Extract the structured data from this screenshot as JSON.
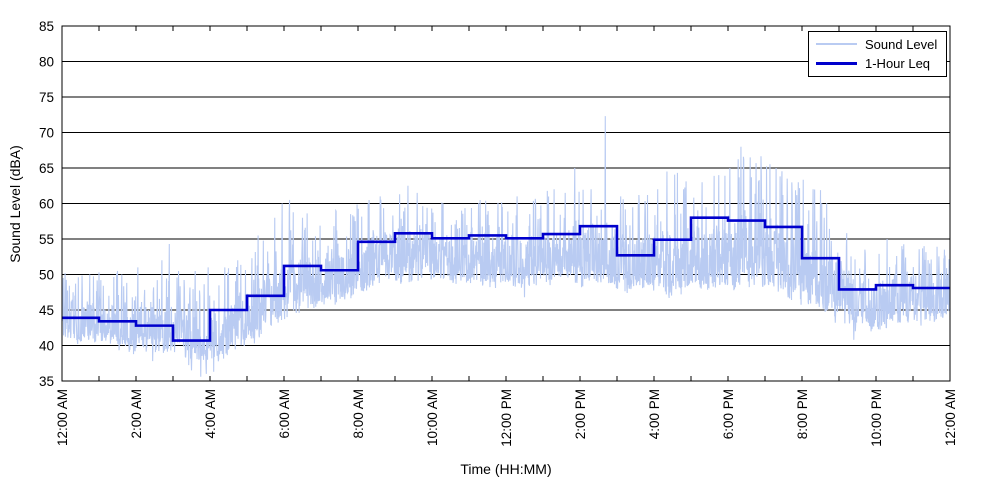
{
  "chart_data": {
    "type": "line",
    "title": "",
    "xlabel": "Time (HH:MM)",
    "ylabel": "Sound Level (dBA)",
    "ylim": [
      35,
      85
    ],
    "yticks": [
      35,
      40,
      45,
      50,
      55,
      60,
      65,
      70,
      75,
      80,
      85
    ],
    "x_hours": 24,
    "xtick_labels": [
      "12:00 AM",
      "2:00 AM",
      "4:00 AM",
      "6:00 AM",
      "8:00 AM",
      "10:00 AM",
      "12:00 PM",
      "2:00 PM",
      "4:00 PM",
      "6:00 PM",
      "8:00 PM",
      "10:00 PM",
      "12:00 AM"
    ],
    "xtick_label_every_hours": 2,
    "minor_tick_every_hours": 1,
    "grid": "horizontal-solid-black",
    "background": "#ffffff",
    "axis_color": "#000000",
    "legend": {
      "position": "top-right",
      "entries": [
        {
          "label": "Sound Level",
          "color": "#b9cbf2",
          "line_width": 1.5
        },
        {
          "label": "1-Hour Leq",
          "color": "#0000cc",
          "line_width": 3
        }
      ]
    },
    "series": [
      {
        "name": "Sound Level",
        "style": "noisy-line",
        "color": "#b9cbf2",
        "stroke_width": 1.1,
        "samples_per_hour": 120,
        "hourly_envelope_low": [
          39.5,
          38.5,
          37.5,
          35.5,
          36.5,
          40,
          43,
          43.5,
          47,
          47.5,
          47,
          46.5,
          46.5,
          47,
          46.5,
          45.5,
          45,
          46,
          46,
          45,
          43,
          40.5,
          41,
          42
        ],
        "hourly_envelope_high": [
          50,
          50.5,
          51,
          50.5,
          51,
          55,
          60.5,
          59,
          61,
          62.5,
          60,
          60.5,
          61,
          63,
          63,
          61,
          64.5,
          64,
          68,
          65,
          62,
          54,
          55,
          54
        ],
        "spikes": [
          [
            0.03,
            49.5
          ],
          [
            0.08,
            50.2
          ],
          [
            0.3,
            47.5
          ],
          [
            0.75,
            50
          ],
          [
            1.0,
            50.3
          ],
          [
            1.5,
            50.5
          ],
          [
            1.62,
            50
          ],
          [
            2.05,
            51
          ],
          [
            2.7,
            52
          ],
          [
            2.9,
            54.3
          ],
          [
            3.15,
            50.5
          ],
          [
            3.6,
            50.5
          ],
          [
            3.95,
            51
          ],
          [
            4.4,
            51
          ],
          [
            4.75,
            52
          ],
          [
            5.3,
            55.5
          ],
          [
            5.75,
            58
          ],
          [
            5.95,
            60
          ],
          [
            6.15,
            60.5
          ],
          [
            6.5,
            58
          ],
          [
            7.4,
            59
          ],
          [
            7.8,
            58.5
          ],
          [
            8.3,
            60.5
          ],
          [
            8.6,
            61
          ],
          [
            9.35,
            62.5
          ],
          [
            9.6,
            61.5
          ],
          [
            10.3,
            60
          ],
          [
            10.8,
            59
          ],
          [
            11.3,
            60.5
          ],
          [
            11.9,
            59.5
          ],
          [
            12.3,
            61
          ],
          [
            12.8,
            60
          ],
          [
            13.3,
            62
          ],
          [
            13.6,
            61.5
          ],
          [
            13.86,
            65
          ],
          [
            14.3,
            62
          ],
          [
            14.68,
            72.3
          ],
          [
            15.1,
            61
          ],
          [
            15.6,
            60
          ],
          [
            16.1,
            62
          ],
          [
            16.35,
            64.5
          ],
          [
            16.8,
            62
          ],
          [
            17.3,
            63
          ],
          [
            17.75,
            64
          ],
          [
            18.05,
            65
          ],
          [
            18.35,
            68
          ],
          [
            18.6,
            66.5
          ],
          [
            18.9,
            64
          ],
          [
            19.3,
            65
          ],
          [
            19.6,
            63.5
          ],
          [
            19.9,
            63
          ],
          [
            20.3,
            62
          ],
          [
            20.6,
            58
          ],
          [
            21.2,
            54
          ],
          [
            21.7,
            53.5
          ],
          [
            22.3,
            55
          ],
          [
            22.7,
            54
          ],
          [
            23.3,
            54
          ],
          [
            23.85,
            53.5
          ]
        ],
        "dips": [
          [
            2.45,
            37.8
          ],
          [
            3.5,
            36.5
          ],
          [
            3.75,
            35.6
          ],
          [
            3.9,
            36
          ],
          [
            4.1,
            36.3
          ],
          [
            12.5,
            46.8
          ],
          [
            20.9,
            43.2
          ],
          [
            21.4,
            40.8
          ]
        ]
      },
      {
        "name": "1-Hour Leq",
        "style": "step",
        "color": "#0000cc",
        "stroke_width": 2.6,
        "hourly_values": [
          43.9,
          43.4,
          42.8,
          40.7,
          45.0,
          47.0,
          51.2,
          50.6,
          54.6,
          55.8,
          55.1,
          55.5,
          55.1,
          55.7,
          56.8,
          52.7,
          54.9,
          58.0,
          57.6,
          56.7,
          52.3,
          47.9,
          48.5,
          48.1
        ]
      }
    ]
  }
}
